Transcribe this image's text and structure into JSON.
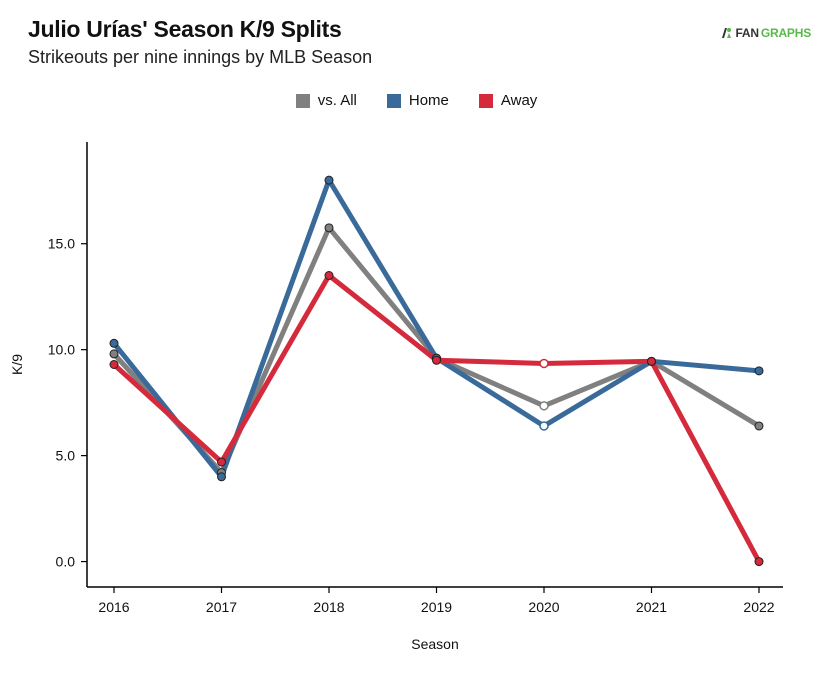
{
  "title": "Julio Urías' Season K/9 Splits",
  "subtitle": "Strikeouts per nine innings by MLB Season",
  "logo": {
    "part1": "FAN",
    "part2": "GRAPHS",
    "icon": "fangraphs-logo-icon"
  },
  "chart_data": {
    "type": "line",
    "title": "Julio Urías' Season K/9 Splits",
    "subtitle": "Strikeouts per nine innings by MLB Season",
    "xlabel": "Season",
    "ylabel": "K/9",
    "categories": [
      "2016",
      "2017",
      "2018",
      "2019",
      "2020",
      "2021",
      "2022"
    ],
    "ylim": [
      -1.2,
      19.8
    ],
    "yticks": [
      0,
      5,
      10,
      15
    ],
    "ytick_labels": [
      "0.0",
      "5.0",
      "10.0",
      "15.0"
    ],
    "legend_position": "top-center",
    "grid": false,
    "series": [
      {
        "name": "vs. All",
        "color": "#808080",
        "values": [
          9.8,
          4.2,
          15.75,
          9.6,
          7.35,
          9.45,
          6.4
        ],
        "open_markers": [
          false,
          false,
          false,
          false,
          true,
          false,
          false
        ]
      },
      {
        "name": "Home",
        "color": "#3a6a9a",
        "values": [
          10.3,
          4.0,
          18.0,
          9.6,
          6.4,
          9.45,
          9.0
        ],
        "open_markers": [
          false,
          false,
          false,
          false,
          true,
          false,
          false
        ]
      },
      {
        "name": "Away",
        "color": "#d42a3c",
        "values": [
          9.3,
          4.7,
          13.5,
          9.5,
          9.35,
          9.45,
          0.0
        ],
        "open_markers": [
          false,
          false,
          false,
          false,
          true,
          false,
          false
        ]
      }
    ]
  }
}
